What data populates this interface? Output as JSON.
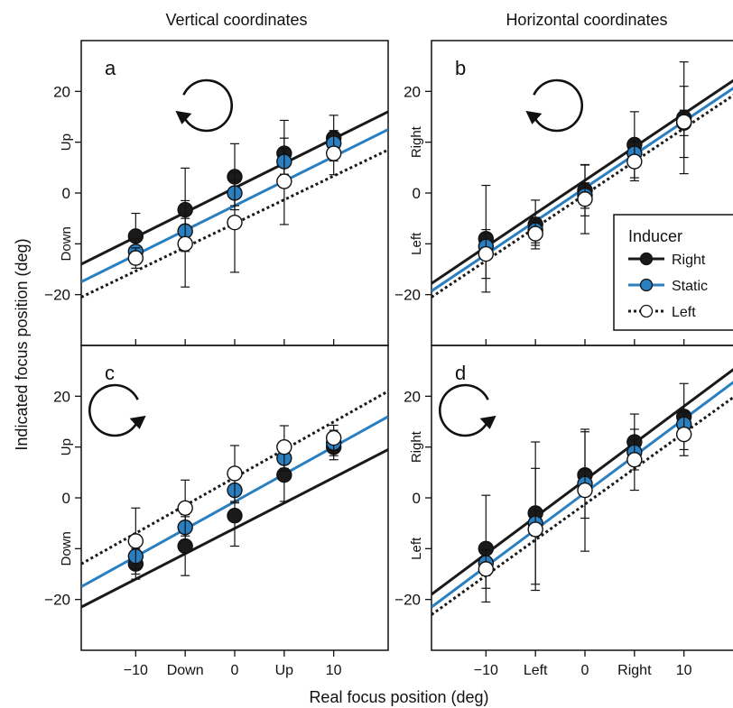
{
  "figure": {
    "column_titles": [
      "Vertical coordinates",
      "Horizontal coordinates"
    ],
    "ylabel": "Indicated focus position (deg)",
    "xlabel": "Real focus position (deg)"
  },
  "legend": {
    "title": "Inducer",
    "entries": [
      {
        "label": "Right",
        "marker": "filled-black",
        "line": "solid-black"
      },
      {
        "label": "Static",
        "marker": "filled-blue",
        "line": "solid-blue"
      },
      {
        "label": "Left",
        "marker": "open-white",
        "line": "dotted-black"
      }
    ]
  },
  "colors": {
    "right": "#1a1a1a",
    "static": "#2a7fc1",
    "left": "#ffffff"
  },
  "chart_data": [
    {
      "type": "scatter",
      "panel": "a",
      "rotation": "clockwise",
      "x": [
        -10,
        -5,
        0,
        5,
        10
      ],
      "xticklabels": [
        "-10",
        "Down",
        "0",
        "Up",
        "10"
      ],
      "yticklabels": [
        "-20",
        "Down",
        "0",
        "Up",
        "20"
      ],
      "ylim": [
        -30,
        30
      ],
      "xlim": [
        -15.5,
        15.5
      ],
      "series": [
        {
          "name": "Right",
          "y": [
            -8.5,
            -3.3,
            3.2,
            7.8,
            10.8
          ],
          "err": [
            4.5,
            8.2,
            6.5,
            6.5,
            4.5
          ],
          "fit": [
            -14,
            16
          ]
        },
        {
          "name": "Static",
          "y": [
            -11.5,
            -7.5,
            0.0,
            6.2,
            9.8
          ],
          "err": [
            2.5,
            2.5,
            2.5,
            2.5,
            2.5
          ],
          "fit": [
            -17.5,
            12.5
          ]
        },
        {
          "name": "Left",
          "y": [
            -12.8,
            -10.0,
            -5.8,
            2.3,
            7.8
          ],
          "err": [
            2.0,
            8.5,
            9.8,
            8.5,
            4.2
          ],
          "fit": [
            -20.5,
            8.5
          ]
        }
      ]
    },
    {
      "type": "scatter",
      "panel": "b",
      "rotation": "clockwise",
      "x": [
        -10,
        -5,
        0,
        5,
        10
      ],
      "xticklabels": [
        "-10",
        "Left",
        "0",
        "Right",
        "10"
      ],
      "yticklabels": [
        "-20",
        "Left",
        "0",
        "Right",
        "20"
      ],
      "ylim": [
        -30,
        30
      ],
      "xlim": [
        -15.5,
        15.5
      ],
      "series": [
        {
          "name": "Right",
          "y": [
            -9.0,
            -6.2,
            0.5,
            9.5,
            14.8
          ],
          "err": [
            10.5,
            4.8,
            5.0,
            6.5,
            11.0
          ],
          "fit": [
            -17.8,
            22.8
          ]
        },
        {
          "name": "Static",
          "y": [
            -10.5,
            -7.3,
            -0.5,
            7.8,
            13.8
          ],
          "err": [
            2.5,
            2.5,
            2.5,
            2.5,
            2.5
          ],
          "fit": [
            -19.3,
            21.3
          ]
        },
        {
          "name": "Left",
          "y": [
            -12.0,
            -8.0,
            -1.2,
            6.2,
            14.0
          ],
          "err": [
            4.8,
            2.3,
            6.8,
            3.8,
            7.0
          ],
          "fit": [
            -20.5,
            19.9
          ]
        }
      ]
    },
    {
      "type": "scatter",
      "panel": "c",
      "rotation": "counterclockwise",
      "x": [
        -10,
        -5,
        0,
        5,
        10
      ],
      "xticklabels": [
        "-10",
        "Down",
        "0",
        "Up",
        "10"
      ],
      "yticklabels": [
        "-20",
        "Down",
        "0",
        "Up",
        "20"
      ],
      "ylim": [
        -30,
        30
      ],
      "xlim": [
        -15.5,
        15.5
      ],
      "series": [
        {
          "name": "Right",
          "y": [
            -13.0,
            -9.5,
            -3.5,
            4.5,
            10.0
          ],
          "err": [
            3.0,
            5.8,
            6.0,
            5.2,
            2.5
          ],
          "fit": [
            -21.5,
            9.5
          ]
        },
        {
          "name": "Static",
          "y": [
            -11.5,
            -5.8,
            1.5,
            7.8,
            10.8
          ],
          "err": [
            2.5,
            2.5,
            2.5,
            2.5,
            2.5
          ],
          "fit": [
            -17.5,
            16.0
          ]
        },
        {
          "name": "Left",
          "y": [
            -8.5,
            -2.0,
            4.8,
            10.0,
            11.8
          ],
          "err": [
            6.5,
            5.5,
            5.5,
            4.2,
            2.5
          ],
          "fit": [
            -13.0,
            21.0
          ]
        }
      ]
    },
    {
      "type": "scatter",
      "panel": "d",
      "rotation": "counterclockwise",
      "x": [
        -10,
        -5,
        0,
        5,
        10
      ],
      "xticklabels": [
        "-10",
        "Left",
        "0",
        "Right",
        "10"
      ],
      "yticklabels": [
        "-20",
        "Left",
        "0",
        "Right",
        "20"
      ],
      "ylim": [
        -30,
        30
      ],
      "xlim": [
        -15.5,
        15.5
      ],
      "series": [
        {
          "name": "Right",
          "y": [
            -10.0,
            -3.0,
            4.5,
            11.0,
            16.0
          ],
          "err": [
            10.5,
            14.0,
            8.5,
            5.5,
            6.5
          ],
          "fit": [
            -19.0,
            26.0
          ]
        },
        {
          "name": "Static",
          "y": [
            -12.8,
            -5.0,
            2.8,
            9.0,
            14.5
          ],
          "err": [
            2.5,
            2.5,
            2.5,
            2.5,
            2.5
          ],
          "fit": [
            -21.5,
            23.5
          ]
        },
        {
          "name": "Left",
          "y": [
            -14.0,
            -6.2,
            1.5,
            7.5,
            12.5
          ],
          "err": [
            3.8,
            12.0,
            12.0,
            6.0,
            4.2
          ],
          "fit": [
            -23.0,
            20.5
          ]
        }
      ]
    }
  ]
}
